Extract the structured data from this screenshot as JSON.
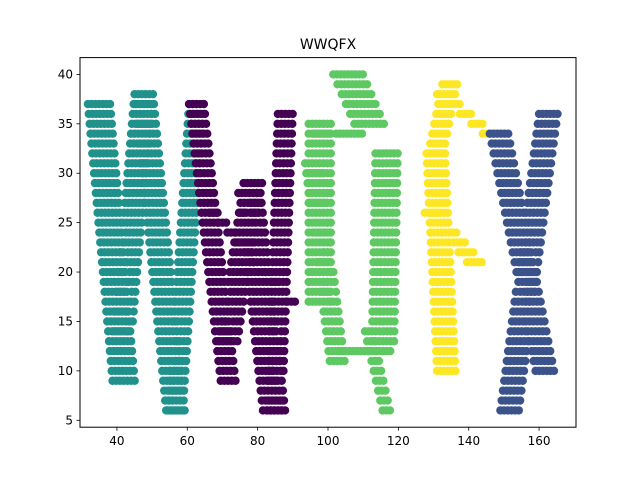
{
  "chart_data": {
    "type": "scatter",
    "title": "WWQFX",
    "xlabel": "",
    "ylabel": "",
    "xlim": [
      29.5,
      170.5
    ],
    "ylim": [
      4.3,
      41.7
    ],
    "xticks": [
      40,
      60,
      80,
      100,
      120,
      140,
      160
    ],
    "yticks": [
      5,
      10,
      15,
      20,
      25,
      30,
      35,
      40
    ],
    "grid": false,
    "legend": false,
    "series": [
      {
        "letter": "W",
        "color": "#21918c",
        "strokes": [
          {
            "x0": 35,
            "y0": 37,
            "x1": 42,
            "y1": 9,
            "w": 6.5,
            "step": 1.05
          },
          {
            "x0": 48,
            "y0": 38,
            "x1": 42,
            "y1": 14,
            "w": 6,
            "step": 1.05
          },
          {
            "x0": 48,
            "y0": 38,
            "x1": 57,
            "y1": 6,
            "w": 6,
            "step": 1.05
          },
          {
            "x0": 63,
            "y0": 37,
            "x1": 57,
            "y1": 6,
            "w": 5,
            "step": 1.05
          }
        ]
      },
      {
        "letter": "W",
        "color": "#440154",
        "strokes": [
          {
            "x0": 63,
            "y0": 37,
            "x1": 72,
            "y1": 9,
            "w": 5,
            "step": 1.05
          },
          {
            "x0": 79,
            "y0": 29,
            "x1": 72,
            "y1": 13,
            "w": 6,
            "step": 1.05
          },
          {
            "x0": 78,
            "y0": 28,
            "x1": 85,
            "y1": 6,
            "w": 7,
            "step": 1.05
          },
          {
            "x0": 88,
            "y0": 36,
            "x1": 85,
            "y1": 6,
            "w": 4.5,
            "step": 1.05
          },
          {
            "x0": 68,
            "y0": 26,
            "x1": 90,
            "y1": 17,
            "w": 3,
            "step": 1.05
          }
        ]
      },
      {
        "letter": "Q",
        "color": "#5ec962",
        "strokes": [
          {
            "x0": 98,
            "y0": 35,
            "x1": 98,
            "y1": 17,
            "w": 7,
            "step": 1.05
          },
          {
            "x0": 96,
            "y0": 31,
            "x1": 103,
            "y1": 11,
            "w": 5,
            "step": 1.05
          },
          {
            "x0": 106,
            "y0": 40,
            "x1": 112,
            "y1": 35,
            "w": 9,
            "step": 1.05
          },
          {
            "x0": 96,
            "y0": 34,
            "x1": 110,
            "y1": 34,
            "w": 3,
            "step": 1.05
          },
          {
            "x0": 117,
            "y0": 32,
            "x1": 116,
            "y1": 13,
            "w": 7,
            "step": 1.05
          },
          {
            "x0": 103,
            "y0": 12,
            "x1": 118,
            "y1": 12,
            "w": 4,
            "step": 1.05
          },
          {
            "x0": 112,
            "y0": 14,
            "x1": 117,
            "y1": 6,
            "w": 3,
            "step": 1.05
          }
        ]
      },
      {
        "letter": "F",
        "color": "#fde725",
        "strokes": [
          {
            "x0": 131,
            "y0": 32,
            "x1": 134,
            "y1": 10,
            "w": 6,
            "step": 1.05
          },
          {
            "x0": 135,
            "y0": 39,
            "x1": 131,
            "y1": 32,
            "w": 5,
            "step": 1.05
          },
          {
            "x0": 133,
            "y0": 38,
            "x1": 146,
            "y1": 34,
            "w": 4,
            "step": 1.05
          },
          {
            "x0": 130,
            "y0": 26,
            "x1": 142,
            "y1": 21,
            "w": 5,
            "step": 1.05
          }
        ]
      },
      {
        "letter": "X",
        "color": "#3b528b",
        "strokes": [
          {
            "x0": 149,
            "y0": 34,
            "x1": 162,
            "y1": 10,
            "w": 6,
            "step": 1.05
          },
          {
            "x0": 163,
            "y0": 36,
            "x1": 152,
            "y1": 6,
            "w": 6,
            "step": 1.05
          }
        ]
      }
    ]
  }
}
